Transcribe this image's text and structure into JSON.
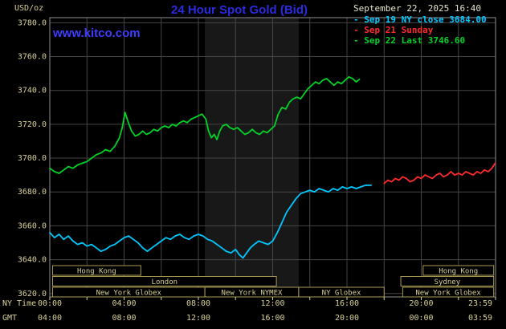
{
  "header": {
    "unit_label": "USD/oz",
    "title": "24 Hour Spot Gold (Bid)",
    "datetime": "September 22, 2025 16:40",
    "watermark": "www.kitco.com"
  },
  "legend": [
    {
      "label": "- Sep 19 NY close 3684.00",
      "color": "#00c8ff"
    },
    {
      "label": "- Sep 21 Sunday",
      "color": "#ff2a2a"
    },
    {
      "label": "- Sep 22 Last 3746.60",
      "color": "#00d226"
    }
  ],
  "colors": {
    "background": "#000000",
    "grid": "#454545",
    "border": "#909090",
    "axis_text": "#d8d096",
    "session_border": "#ab9d55",
    "title": "#2b2be0",
    "kitco": "#3d3dff",
    "date": "#e8e4cc"
  },
  "axes": {
    "ny_time_label": "NY Time",
    "gmt_label": "GMT",
    "y_ticks": [
      "3780.0",
      "3760.0",
      "3740.0",
      "3720.0",
      "3700.0",
      "3680.0",
      "3660.0",
      "3640.0",
      "3620.0"
    ],
    "x_ticks": [
      {
        "h": 0,
        "ny": "00:00",
        "gmt": "04:00"
      },
      {
        "h": 4,
        "ny": "04:00",
        "gmt": "08:00"
      },
      {
        "h": 8,
        "ny": "08:00",
        "gmt": "12:00"
      },
      {
        "h": 12,
        "ny": "12:00",
        "gmt": "16:00"
      },
      {
        "h": 16,
        "ny": "16:00",
        "gmt": "20:00"
      },
      {
        "h": 20,
        "ny": "20:00",
        "gmt": "00:00"
      },
      {
        "h": 23.98,
        "ny": "23:59",
        "gmt": "03:59"
      }
    ]
  },
  "sessions": {
    "rows": [
      {
        "boxes": [
          {
            "label": "Hong Kong",
            "start": 0.15,
            "end": 4.9
          },
          {
            "label": "Hong Kong",
            "start": 20.1,
            "end": 23.9
          }
        ]
      },
      {
        "boxes": [
          {
            "label": "London",
            "start": 0.15,
            "end": 12.2
          },
          {
            "label": "Sydney",
            "start": 18.9,
            "end": 23.9
          }
        ]
      },
      {
        "boxes": [
          {
            "label": "New York Globex",
            "start": 0.15,
            "end": 8.35
          },
          {
            "label": "New York NYMEX",
            "start": 8.35,
            "end": 13.4
          },
          {
            "label": "NY Globex",
            "start": 13.4,
            "end": 18.0
          },
          {
            "label": "New York Globex",
            "start": 19.0,
            "end": 23.9
          }
        ]
      }
    ]
  },
  "chart_data": {
    "type": "line",
    "title": "24 Hour Spot Gold (Bid)",
    "ylabel": "USD/oz",
    "x_axis": {
      "primary": "NY Time",
      "secondary": "GMT",
      "range_hours": [
        0,
        24
      ]
    },
    "y_range": [
      3620,
      3780
    ],
    "grid": {
      "x_step_hours": 2,
      "y_step": 20,
      "on": true
    },
    "band": {
      "start": 8.35,
      "end": 13.4,
      "color": "#181818"
    },
    "legend_position": "top-right",
    "series": [
      {
        "id": "sep19",
        "name": "Sep 19 NY close",
        "close": 3684.0,
        "color": "#00c8ff",
        "points": [
          [
            0,
            3656
          ],
          [
            0.25,
            3653
          ],
          [
            0.5,
            3655
          ],
          [
            0.75,
            3652
          ],
          [
            1,
            3654
          ],
          [
            1.25,
            3651
          ],
          [
            1.5,
            3649
          ],
          [
            1.75,
            3650
          ],
          [
            2,
            3648
          ],
          [
            2.25,
            3649
          ],
          [
            2.5,
            3647
          ],
          [
            2.75,
            3645
          ],
          [
            3,
            3646
          ],
          [
            3.25,
            3648
          ],
          [
            3.5,
            3649
          ],
          [
            3.75,
            3651
          ],
          [
            4,
            3653
          ],
          [
            4.25,
            3654
          ],
          [
            4.5,
            3652
          ],
          [
            4.75,
            3650
          ],
          [
            5,
            3647
          ],
          [
            5.25,
            3645
          ],
          [
            5.5,
            3647
          ],
          [
            5.75,
            3649
          ],
          [
            6,
            3651
          ],
          [
            6.25,
            3653
          ],
          [
            6.5,
            3652
          ],
          [
            6.75,
            3654
          ],
          [
            7,
            3655
          ],
          [
            7.25,
            3653
          ],
          [
            7.5,
            3652
          ],
          [
            7.75,
            3654
          ],
          [
            8,
            3655
          ],
          [
            8.25,
            3654
          ],
          [
            8.5,
            3652
          ],
          [
            8.75,
            3651
          ],
          [
            9,
            3649
          ],
          [
            9.25,
            3647
          ],
          [
            9.5,
            3645
          ],
          [
            9.75,
            3644
          ],
          [
            10,
            3646
          ],
          [
            10.2,
            3643
          ],
          [
            10.4,
            3641
          ],
          [
            10.6,
            3644
          ],
          [
            10.8,
            3647
          ],
          [
            11,
            3649
          ],
          [
            11.25,
            3651
          ],
          [
            11.5,
            3650
          ],
          [
            11.75,
            3649
          ],
          [
            12,
            3651
          ],
          [
            12.25,
            3656
          ],
          [
            12.5,
            3662
          ],
          [
            12.75,
            3668
          ],
          [
            13,
            3672
          ],
          [
            13.25,
            3676
          ],
          [
            13.5,
            3679
          ],
          [
            13.75,
            3680
          ],
          [
            14,
            3681
          ],
          [
            14.25,
            3680
          ],
          [
            14.5,
            3682
          ],
          [
            14.75,
            3681
          ],
          [
            15,
            3680
          ],
          [
            15.25,
            3682
          ],
          [
            15.5,
            3681
          ],
          [
            15.75,
            3683
          ],
          [
            16,
            3682
          ],
          [
            16.25,
            3683
          ],
          [
            16.5,
            3682
          ],
          [
            16.75,
            3683
          ],
          [
            17,
            3684
          ],
          [
            17.3,
            3684
          ]
        ]
      },
      {
        "id": "sep21",
        "name": "Sep 21 Sunday",
        "color": "#ff2a2a",
        "points": [
          [
            18,
            3685
          ],
          [
            18.2,
            3687
          ],
          [
            18.4,
            3686
          ],
          [
            18.6,
            3688
          ],
          [
            18.8,
            3687
          ],
          [
            19,
            3689
          ],
          [
            19.2,
            3688
          ],
          [
            19.4,
            3686
          ],
          [
            19.6,
            3687
          ],
          [
            19.8,
            3689
          ],
          [
            20,
            3688
          ],
          [
            20.2,
            3690
          ],
          [
            20.4,
            3689
          ],
          [
            20.6,
            3688
          ],
          [
            20.8,
            3690
          ],
          [
            21,
            3691
          ],
          [
            21.2,
            3689
          ],
          [
            21.4,
            3690
          ],
          [
            21.6,
            3692
          ],
          [
            21.8,
            3690
          ],
          [
            22,
            3691
          ],
          [
            22.2,
            3690
          ],
          [
            22.4,
            3692
          ],
          [
            22.6,
            3691
          ],
          [
            22.8,
            3690
          ],
          [
            23,
            3692
          ],
          [
            23.2,
            3691
          ],
          [
            23.4,
            3693
          ],
          [
            23.6,
            3692
          ],
          [
            23.8,
            3694
          ],
          [
            23.98,
            3697
          ]
        ]
      },
      {
        "id": "sep22",
        "name": "Sep 22 Last",
        "last": 3746.6,
        "color": "#00d226",
        "points": [
          [
            0,
            3694
          ],
          [
            0.25,
            3692
          ],
          [
            0.5,
            3691
          ],
          [
            0.75,
            3693
          ],
          [
            1,
            3695
          ],
          [
            1.25,
            3694
          ],
          [
            1.5,
            3696
          ],
          [
            1.75,
            3697
          ],
          [
            2,
            3698
          ],
          [
            2.25,
            3700
          ],
          [
            2.5,
            3702
          ],
          [
            2.75,
            3703
          ],
          [
            3,
            3705
          ],
          [
            3.25,
            3704
          ],
          [
            3.5,
            3707
          ],
          [
            3.75,
            3712
          ],
          [
            3.9,
            3718
          ],
          [
            4.05,
            3727
          ],
          [
            4.2,
            3722
          ],
          [
            4.4,
            3716
          ],
          [
            4.6,
            3713
          ],
          [
            4.8,
            3714
          ],
          [
            5,
            3716
          ],
          [
            5.2,
            3714
          ],
          [
            5.4,
            3715
          ],
          [
            5.6,
            3717
          ],
          [
            5.8,
            3716
          ],
          [
            6,
            3718
          ],
          [
            6.2,
            3719
          ],
          [
            6.4,
            3718
          ],
          [
            6.6,
            3720
          ],
          [
            6.8,
            3719
          ],
          [
            7,
            3721
          ],
          [
            7.2,
            3722
          ],
          [
            7.4,
            3721
          ],
          [
            7.6,
            3723
          ],
          [
            7.8,
            3724
          ],
          [
            8,
            3725
          ],
          [
            8.2,
            3726
          ],
          [
            8.4,
            3723
          ],
          [
            8.55,
            3716
          ],
          [
            8.7,
            3712
          ],
          [
            8.85,
            3714
          ],
          [
            9,
            3711
          ],
          [
            9.15,
            3716
          ],
          [
            9.3,
            3719
          ],
          [
            9.5,
            3720
          ],
          [
            9.7,
            3718
          ],
          [
            9.9,
            3717
          ],
          [
            10.1,
            3718
          ],
          [
            10.3,
            3716
          ],
          [
            10.5,
            3714
          ],
          [
            10.7,
            3715
          ],
          [
            10.9,
            3717
          ],
          [
            11.1,
            3715
          ],
          [
            11.3,
            3714
          ],
          [
            11.5,
            3716
          ],
          [
            11.7,
            3715
          ],
          [
            11.9,
            3717
          ],
          [
            12.1,
            3719
          ],
          [
            12.3,
            3726
          ],
          [
            12.5,
            3730
          ],
          [
            12.7,
            3729
          ],
          [
            12.9,
            3733
          ],
          [
            13.1,
            3735
          ],
          [
            13.3,
            3736
          ],
          [
            13.5,
            3735
          ],
          [
            13.7,
            3738
          ],
          [
            13.9,
            3741
          ],
          [
            14.1,
            3743
          ],
          [
            14.3,
            3745
          ],
          [
            14.5,
            3744
          ],
          [
            14.7,
            3746
          ],
          [
            14.9,
            3747
          ],
          [
            15.1,
            3745
          ],
          [
            15.3,
            3743
          ],
          [
            15.5,
            3745
          ],
          [
            15.7,
            3744
          ],
          [
            15.9,
            3746
          ],
          [
            16.1,
            3748
          ],
          [
            16.3,
            3747
          ],
          [
            16.5,
            3745
          ],
          [
            16.67,
            3746.6
          ]
        ]
      }
    ]
  }
}
